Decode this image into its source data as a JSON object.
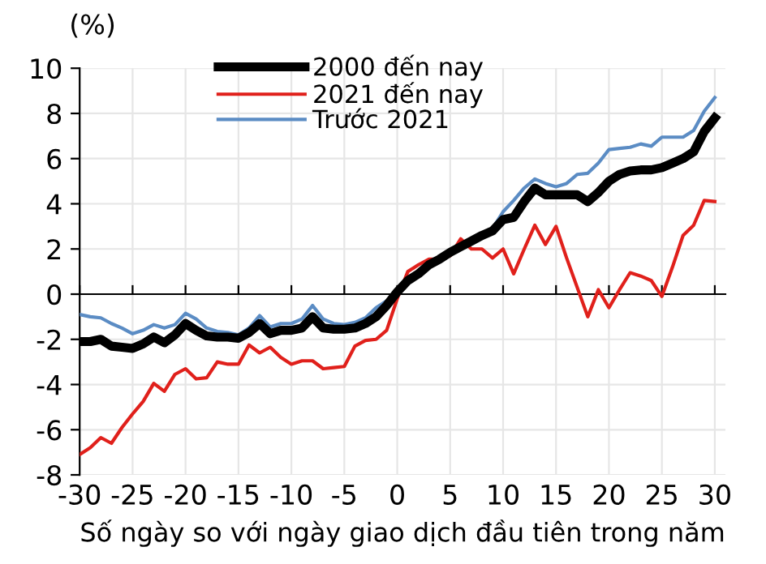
{
  "chart_data": {
    "type": "line",
    "ylabel": "(%)",
    "xlabel": "Số ngày so với ngày giao dịch đầu tiên trong năm",
    "x": [
      -30,
      -29,
      -28,
      -27,
      -26,
      -25,
      -24,
      -23,
      -22,
      -21,
      -20,
      -19,
      -18,
      -17,
      -16,
      -15,
      -14,
      -13,
      -12,
      -11,
      -10,
      -9,
      -8,
      -7,
      -6,
      -5,
      -4,
      -3,
      -2,
      -1,
      0,
      1,
      2,
      3,
      4,
      5,
      6,
      7,
      8,
      9,
      10,
      11,
      12,
      13,
      14,
      15,
      16,
      17,
      18,
      19,
      20,
      21,
      22,
      23,
      24,
      25,
      26,
      27,
      28,
      29,
      30
    ],
    "series": [
      {
        "name": "2000 đến nay",
        "color": "#000000",
        "values": [
          -2.1,
          -2.1,
          -2.0,
          -2.3,
          -2.35,
          -2.4,
          -2.2,
          -1.9,
          -2.15,
          -1.8,
          -1.3,
          -1.6,
          -1.85,
          -1.9,
          -1.9,
          -1.95,
          -1.7,
          -1.3,
          -1.75,
          -1.6,
          -1.6,
          -1.5,
          -1.0,
          -1.5,
          -1.55,
          -1.55,
          -1.5,
          -1.3,
          -1.0,
          -0.5,
          0.1,
          0.6,
          0.9,
          1.3,
          1.55,
          1.85,
          2.1,
          2.35,
          2.6,
          2.8,
          3.3,
          3.4,
          4.1,
          4.7,
          4.4,
          4.4,
          4.4,
          4.4,
          4.1,
          4.5,
          5.0,
          5.3,
          5.45,
          5.5,
          5.5,
          5.6,
          5.8,
          6.0,
          6.3,
          7.2,
          7.8
        ]
      },
      {
        "name": "2021 đến nay",
        "color": "#e0201b",
        "values": [
          -7.1,
          -6.8,
          -6.35,
          -6.6,
          -5.9,
          -5.3,
          -4.75,
          -3.95,
          -4.3,
          -3.55,
          -3.3,
          -3.75,
          -3.7,
          -3.0,
          -3.1,
          -3.1,
          -2.25,
          -2.6,
          -2.35,
          -2.8,
          -3.1,
          -2.95,
          -2.95,
          -3.3,
          -3.25,
          -3.2,
          -2.3,
          -2.05,
          -2.0,
          -1.6,
          -0.2,
          1.0,
          1.3,
          1.55,
          1.55,
          1.7,
          2.45,
          2.0,
          2.0,
          1.6,
          2.0,
          0.9,
          2.0,
          3.05,
          2.2,
          3.0,
          1.6,
          0.3,
          -1.0,
          0.2,
          -0.6,
          0.2,
          0.95,
          0.8,
          0.6,
          -0.1,
          1.2,
          2.6,
          3.05,
          4.15,
          4.1
        ]
      },
      {
        "name": "Trước 2021",
        "color": "#5b8cc4",
        "values": [
          -0.9,
          -1.0,
          -1.05,
          -1.3,
          -1.5,
          -1.75,
          -1.6,
          -1.35,
          -1.5,
          -1.35,
          -0.85,
          -1.1,
          -1.5,
          -1.65,
          -1.7,
          -1.8,
          -1.5,
          -0.95,
          -1.45,
          -1.3,
          -1.3,
          -1.1,
          -0.5,
          -1.1,
          -1.3,
          -1.35,
          -1.25,
          -1.05,
          -0.6,
          -0.3,
          0.1,
          0.65,
          0.95,
          1.35,
          1.6,
          1.9,
          2.15,
          2.4,
          2.65,
          2.9,
          3.65,
          4.15,
          4.7,
          5.1,
          4.9,
          4.75,
          4.9,
          5.3,
          5.35,
          5.8,
          6.4,
          6.45,
          6.5,
          6.65,
          6.55,
          6.95,
          6.95,
          6.95,
          7.25,
          8.1,
          8.7
        ]
      }
    ],
    "xlim": [
      -30,
      31
    ],
    "xticks": [
      -30,
      -25,
      -20,
      -15,
      -10,
      -5,
      0,
      5,
      10,
      15,
      20,
      25,
      30
    ],
    "ylim": [
      -8,
      10
    ],
    "yticks": [
      -8,
      -6,
      -4,
      -2,
      0,
      2,
      4,
      6,
      8,
      10
    ],
    "grid": true,
    "legend": "top",
    "marker": "none",
    "line_style": "solid"
  }
}
